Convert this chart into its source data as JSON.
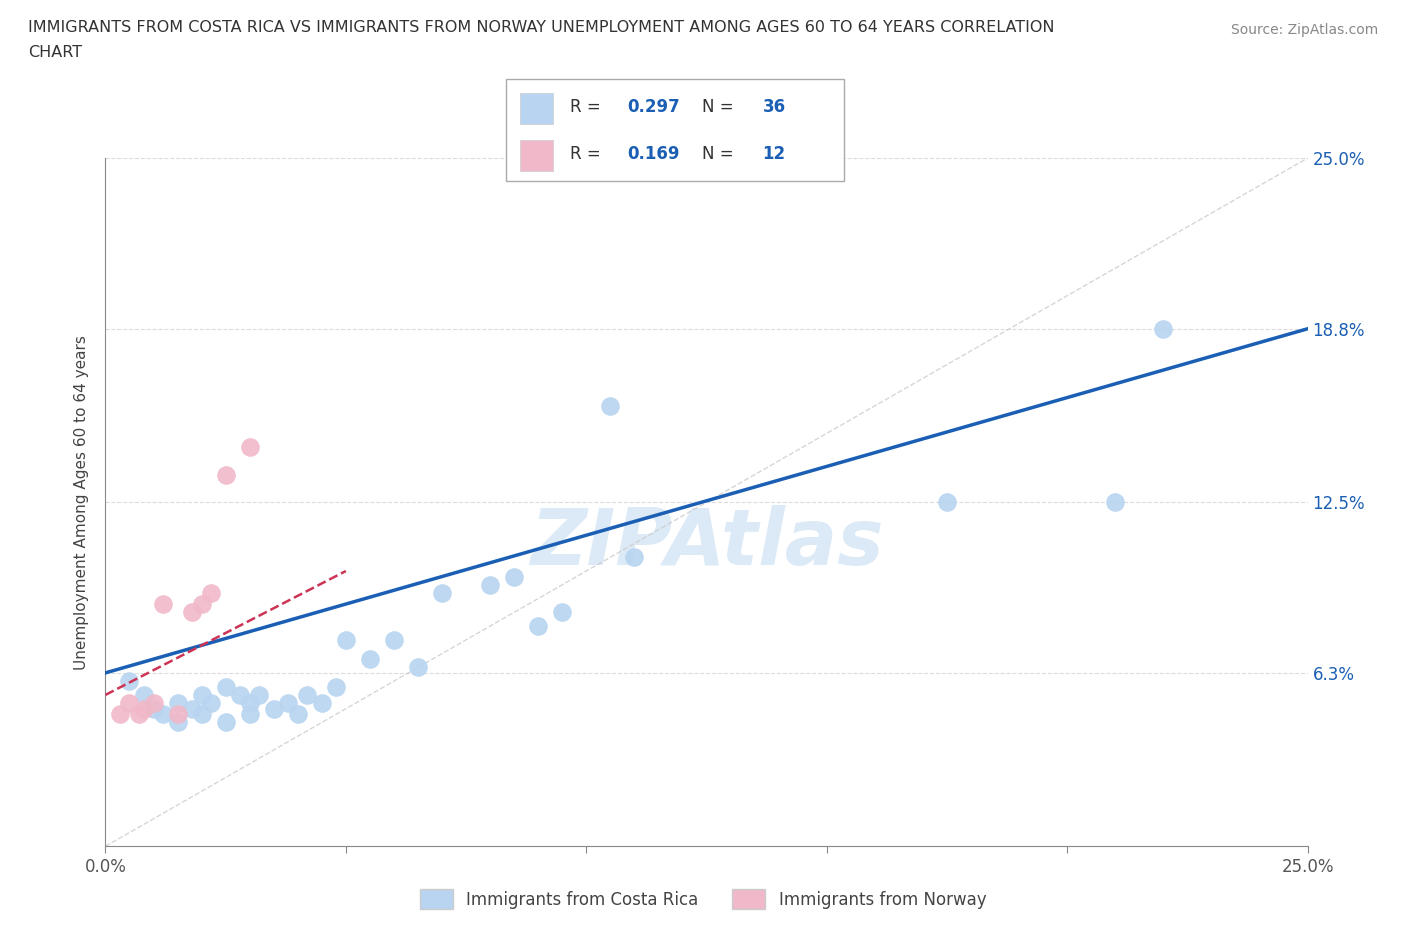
{
  "title_line1": "IMMIGRANTS FROM COSTA RICA VS IMMIGRANTS FROM NORWAY UNEMPLOYMENT AMONG AGES 60 TO 64 YEARS CORRELATION",
  "title_line2": "CHART",
  "source_text": "Source: ZipAtlas.com",
  "ylabel": "Unemployment Among Ages 60 to 64 years",
  "xlim": [
    0.0,
    0.25
  ],
  "ylim": [
    0.0,
    0.25
  ],
  "xtick_vals": [
    0.0,
    0.05,
    0.1,
    0.15,
    0.2,
    0.25
  ],
  "xtick_labels": [
    "0.0%",
    "",
    "",
    "",
    "",
    "25.0%"
  ],
  "ytick_vals": [
    0.0,
    0.063,
    0.125,
    0.188,
    0.25
  ],
  "ytick_labels": [
    "",
    "6.3%",
    "12.5%",
    "18.8%",
    "25.0%"
  ],
  "watermark": "ZIPAtlas",
  "legend1_label": "Immigrants from Costa Rica",
  "legend2_label": "Immigrants from Norway",
  "r1": "0.297",
  "n1": "36",
  "r2": "0.169",
  "n2": "12",
  "color_cr": "#b8d4f0",
  "color_no": "#f0b8c8",
  "color_line_cr": "#1a5fb4",
  "color_line_no": "#cc3355",
  "color_diag": "#cccccc",
  "color_grid": "#cccccc",
  "color_text_blue": "#1a5fb4",
  "color_label": "#444444",
  "costa_rica_x": [
    0.005,
    0.008,
    0.01,
    0.012,
    0.015,
    0.015,
    0.018,
    0.02,
    0.02,
    0.022,
    0.025,
    0.025,
    0.028,
    0.03,
    0.03,
    0.032,
    0.035,
    0.038,
    0.04,
    0.042,
    0.045,
    0.048,
    0.05,
    0.055,
    0.06,
    0.065,
    0.07,
    0.08,
    0.085,
    0.09,
    0.095,
    0.105,
    0.11,
    0.175,
    0.21,
    0.22
  ],
  "costa_rica_y": [
    0.06,
    0.055,
    0.05,
    0.048,
    0.045,
    0.052,
    0.05,
    0.048,
    0.055,
    0.052,
    0.045,
    0.058,
    0.055,
    0.048,
    0.052,
    0.055,
    0.05,
    0.052,
    0.048,
    0.055,
    0.052,
    0.058,
    0.075,
    0.068,
    0.075,
    0.065,
    0.092,
    0.095,
    0.098,
    0.08,
    0.085,
    0.16,
    0.105,
    0.125,
    0.125,
    0.188
  ],
  "norway_x": [
    0.003,
    0.005,
    0.007,
    0.008,
    0.01,
    0.012,
    0.015,
    0.018,
    0.02,
    0.022,
    0.025,
    0.03
  ],
  "norway_y": [
    0.048,
    0.052,
    0.048,
    0.05,
    0.052,
    0.088,
    0.048,
    0.085,
    0.088,
    0.092,
    0.135,
    0.145
  ],
  "cr_line_x0": 0.0,
  "cr_line_x1": 0.25,
  "cr_line_y0": 0.063,
  "cr_line_y1": 0.188,
  "no_line_x0": 0.0,
  "no_line_x1": 0.05,
  "no_line_y0": 0.055,
  "no_line_y1": 0.1
}
